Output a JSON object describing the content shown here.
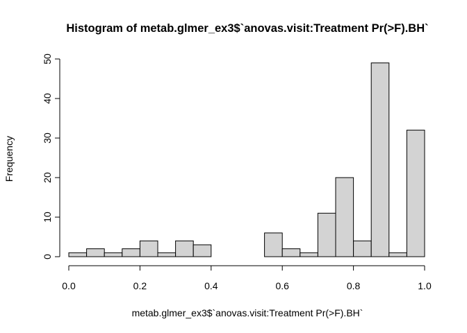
{
  "chart_data": {
    "type": "bar",
    "title": "Histogram of metab.glmer_ex3$`anovas.visit:Treatment Pr(>F).BH`",
    "xlabel": "metab.glmer_ex3$`anovas.visit:Treatment Pr(>F).BH`",
    "ylabel": "Frequency",
    "bin_edges": [
      0.0,
      0.05,
      0.1,
      0.15,
      0.2,
      0.25,
      0.3,
      0.35,
      0.4,
      0.45,
      0.5,
      0.55,
      0.6,
      0.65,
      0.7,
      0.75,
      0.8,
      0.85,
      0.9,
      0.95,
      1.0
    ],
    "values": [
      1,
      2,
      1,
      2,
      4,
      1,
      4,
      3,
      0,
      0,
      0,
      6,
      2,
      1,
      11,
      20,
      4,
      49,
      1,
      32
    ],
    "xlim": [
      0.0,
      1.0
    ],
    "ylim": [
      0,
      50
    ],
    "xticks": [
      "0.0",
      "0.2",
      "0.4",
      "0.6",
      "0.8",
      "1.0"
    ],
    "yticks": [
      "0",
      "10",
      "20",
      "30",
      "40",
      "50"
    ],
    "bar_color": "#d3d3d3",
    "grid": false,
    "legend": "none"
  }
}
